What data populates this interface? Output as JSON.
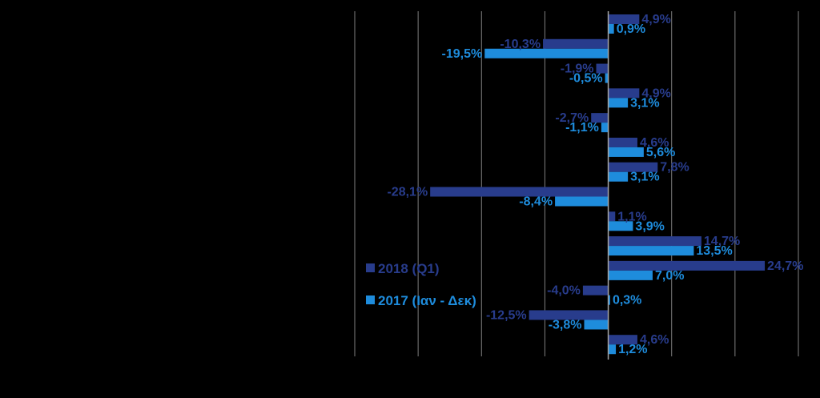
{
  "chart_data": {
    "type": "bar",
    "orientation": "horizontal",
    "xlim": [
      -40,
      30
    ],
    "grid": true,
    "legend_position": "left",
    "colors": {
      "series_2018": "#283C8C",
      "series_2017": "#1E8CDC",
      "grid": "#7F7F7F",
      "background": "#000000"
    },
    "series": [
      {
        "name": "2018 (Q1)",
        "values": [
          4.9,
          -10.3,
          -1.9,
          4.9,
          -2.7,
          4.6,
          7.8,
          -28.1,
          1.1,
          14.7,
          24.7,
          -4.0,
          -12.5,
          4.6
        ],
        "labels": [
          "4,9%",
          "-10,3%",
          "-1,9%",
          "4,9%",
          "-2,7%",
          "4,6%",
          "7,8%",
          "-28,1%",
          "1,1%",
          "14,7%",
          "24,7%",
          "-4,0%",
          "-12,5%",
          "4,6%"
        ]
      },
      {
        "name": "2017 (Ιαν - Δεκ)",
        "values": [
          0.9,
          -19.5,
          -0.5,
          3.1,
          -1.1,
          5.6,
          3.1,
          -8.4,
          3.9,
          13.5,
          7.0,
          0.3,
          -3.8,
          1.2
        ],
        "labels": [
          "0,9%",
          "-19,5%",
          "-0,5%",
          "3,1%",
          "-1,1%",
          "5,6%",
          "3,1%",
          "-8,4%",
          "3,9%",
          "13,5%",
          "7,0%",
          "0,3%",
          "-3,8%",
          "1,2%"
        ]
      }
    ]
  }
}
